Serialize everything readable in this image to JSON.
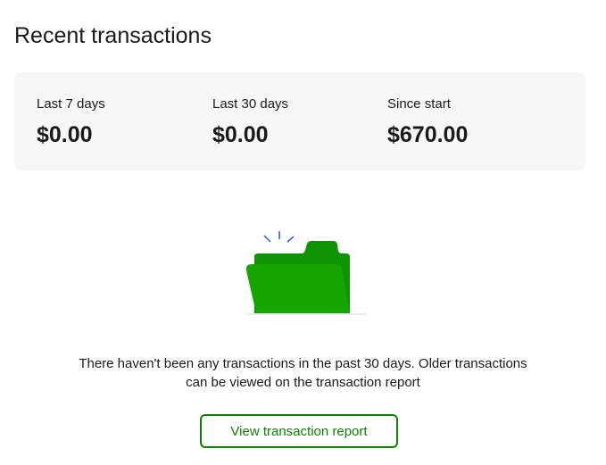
{
  "title": "Recent transactions",
  "stats": [
    {
      "label": "Last 7 days",
      "value": "$0.00"
    },
    {
      "label": "Last 30 days",
      "value": "$0.00"
    },
    {
      "label": "Since start",
      "value": "$670.00"
    }
  ],
  "empty": {
    "line1": "There haven't been any transactions in the past 30 days. Older transactions",
    "line2": "can be viewed on the transaction report"
  },
  "button": "View transaction report",
  "colors": {
    "accent": "#108000",
    "folder": "#16a500"
  }
}
